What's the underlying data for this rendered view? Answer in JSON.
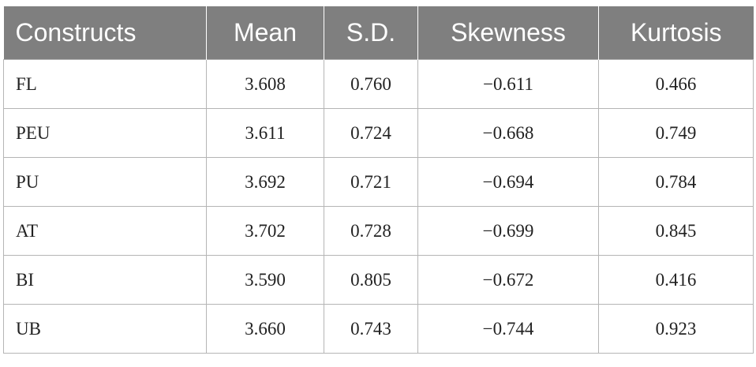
{
  "table": {
    "headers": [
      "Constructs",
      "Mean",
      "S.D.",
      "Skewness",
      "Kurtosis"
    ],
    "rows": [
      {
        "construct": "FL",
        "mean": "3.608",
        "sd": "0.760",
        "skewness": "−0.611",
        "kurtosis": "0.466"
      },
      {
        "construct": "PEU",
        "mean": "3.611",
        "sd": "0.724",
        "skewness": "−0.668",
        "kurtosis": "0.749"
      },
      {
        "construct": "PU",
        "mean": "3.692",
        "sd": "0.721",
        "skewness": "−0.694",
        "kurtosis": "0.784"
      },
      {
        "construct": "AT",
        "mean": "3.702",
        "sd": "0.728",
        "skewness": "−0.699",
        "kurtosis": "0.845"
      },
      {
        "construct": "BI",
        "mean": "3.590",
        "sd": "0.805",
        "skewness": "−0.672",
        "kurtosis": "0.416"
      },
      {
        "construct": "UB",
        "mean": "3.660",
        "sd": "0.743",
        "skewness": "−0.744",
        "kurtosis": "0.923"
      }
    ]
  }
}
